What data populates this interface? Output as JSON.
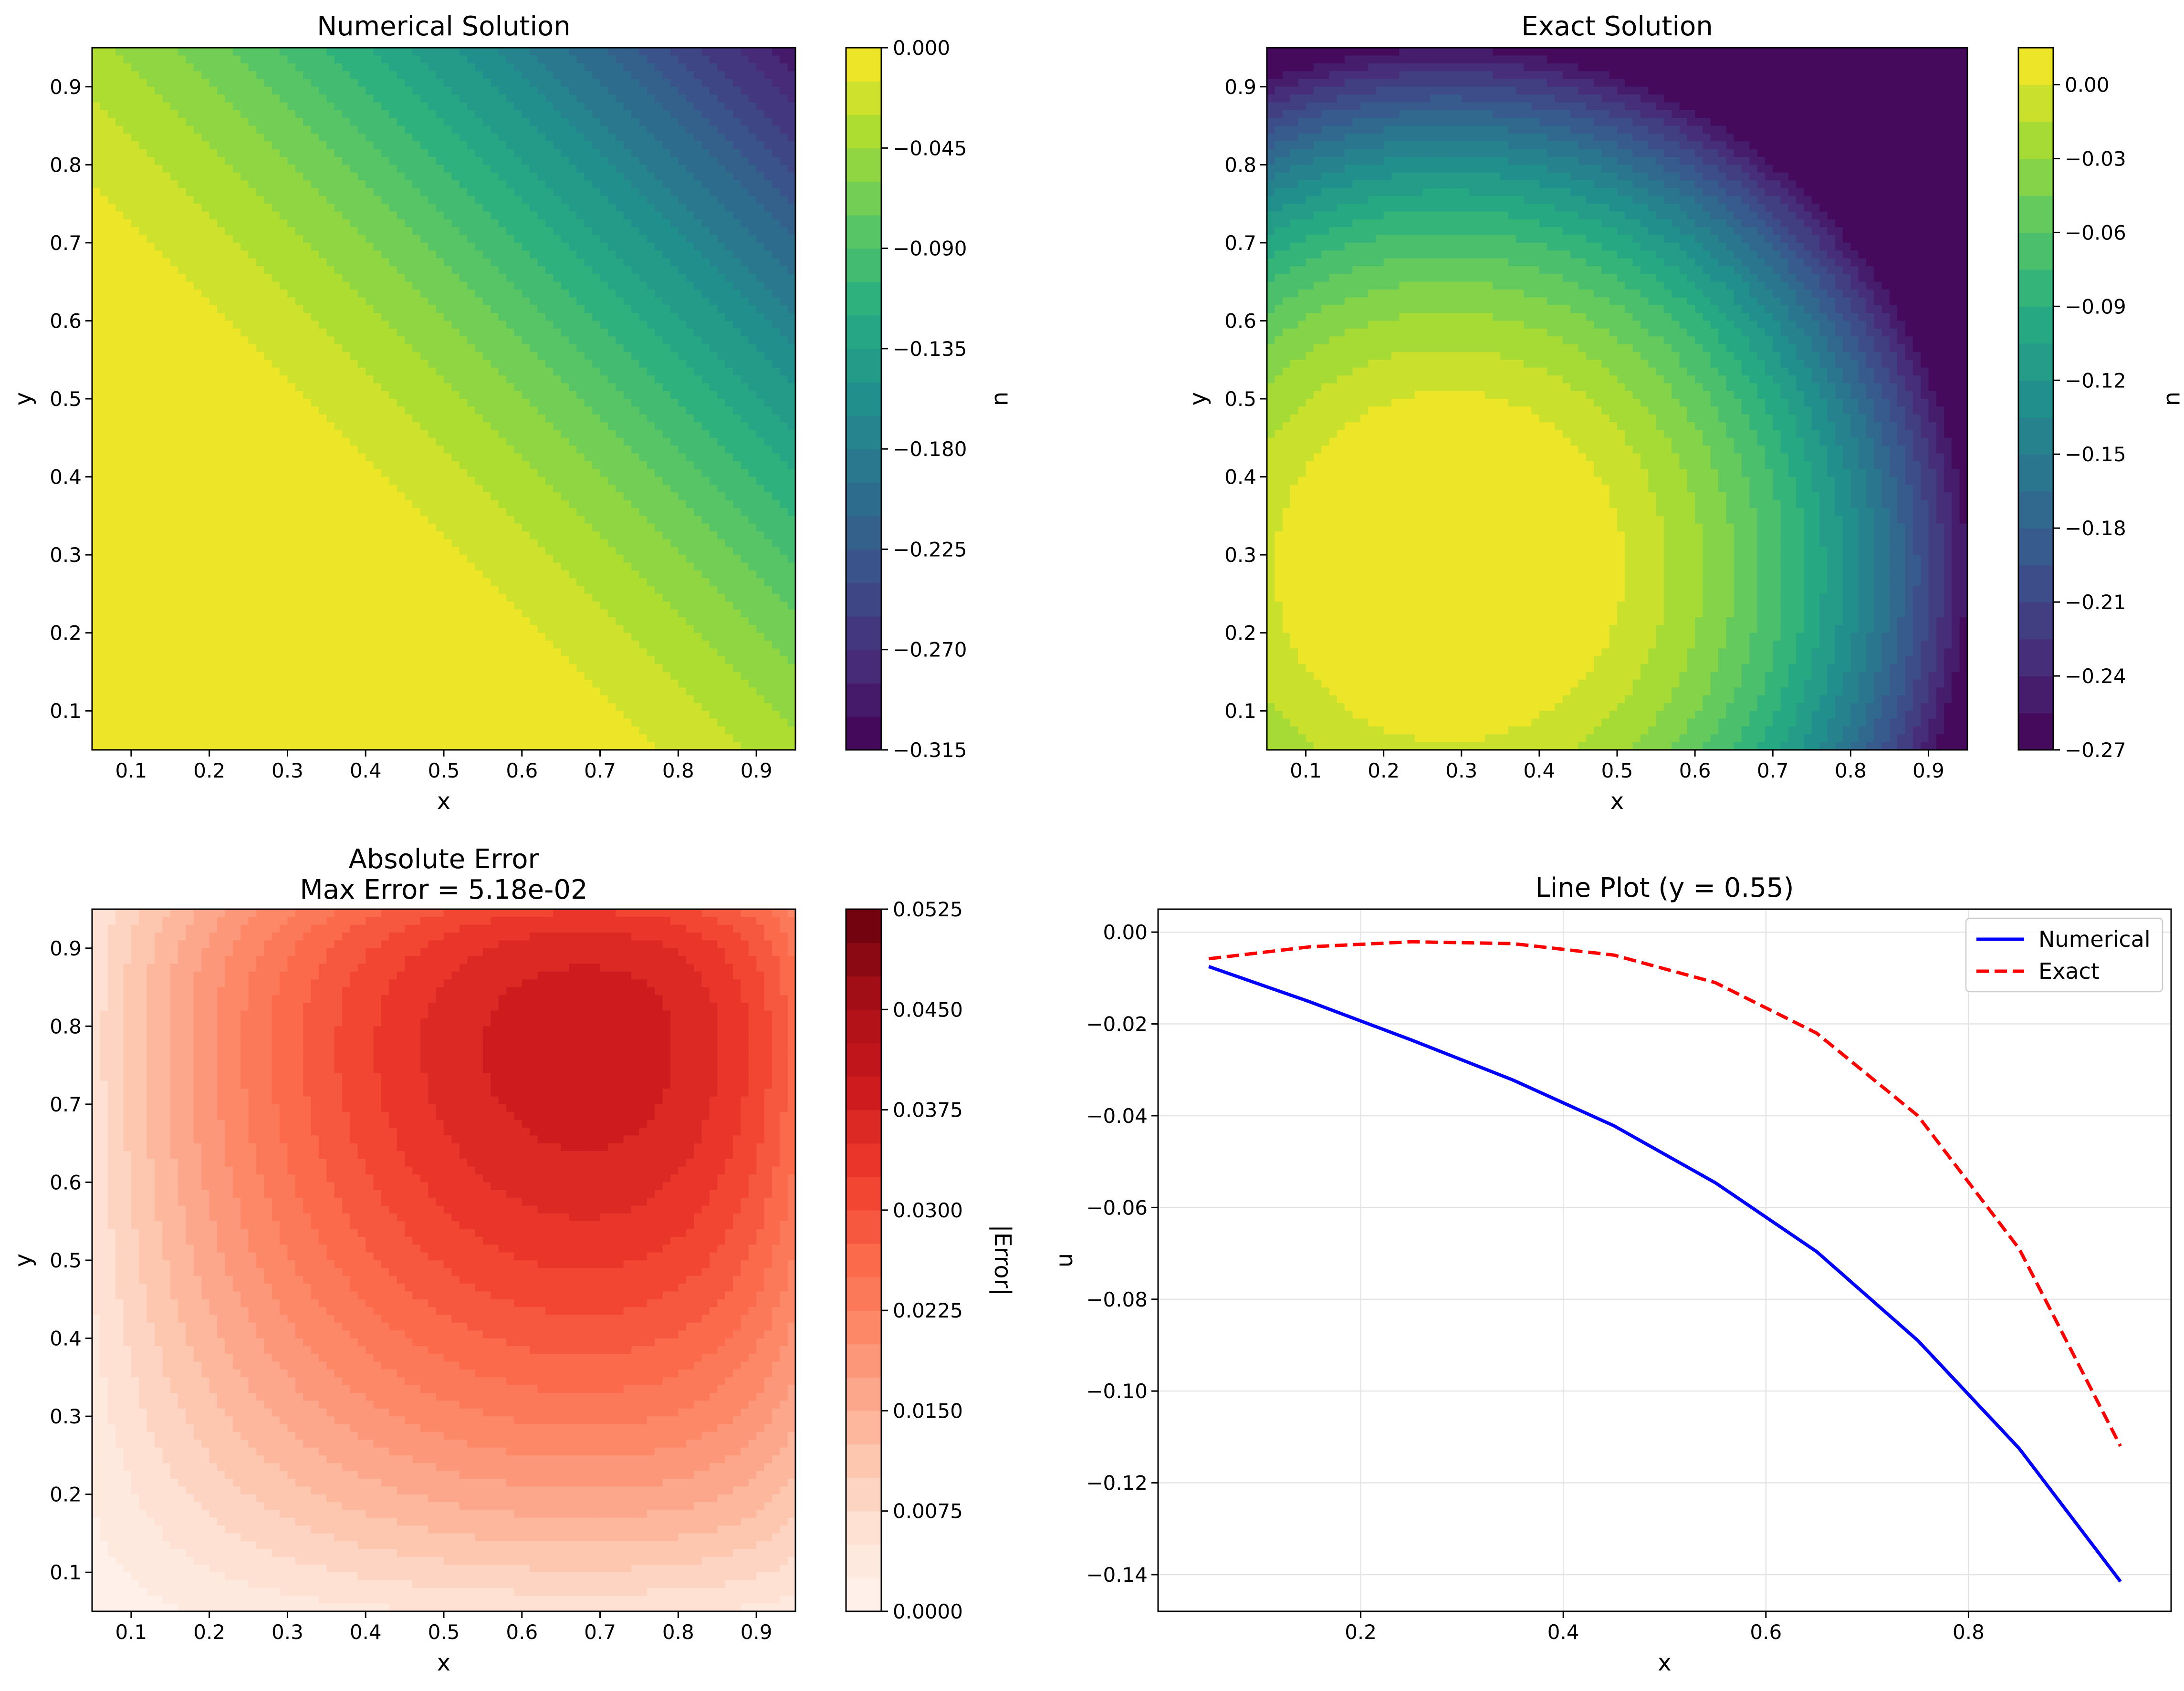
{
  "chart_data": [
    {
      "type": "heatmap",
      "title": "Numerical Solution",
      "xlabel": "x",
      "ylabel": "y",
      "xlim": [
        0.05,
        0.95
      ],
      "ylim": [
        0.05,
        0.95
      ],
      "xticks": [
        "0.1",
        "0.2",
        "0.3",
        "0.4",
        "0.5",
        "0.6",
        "0.7",
        "0.8",
        "0.9"
      ],
      "yticks": [
        "0.1",
        "0.2",
        "0.3",
        "0.4",
        "0.5",
        "0.6",
        "0.7",
        "0.8",
        "0.9"
      ],
      "colormap": "viridis",
      "colorbar": {
        "label": "u",
        "range": [
          -0.315,
          0.0
        ],
        "ticks": [
          "0.000",
          "−0.045",
          "−0.090",
          "−0.135",
          "−0.180",
          "−0.225",
          "−0.270",
          "−0.315"
        ]
      }
    },
    {
      "type": "heatmap",
      "title": "Exact Solution",
      "xlabel": "x",
      "ylabel": "y",
      "xlim": [
        0.05,
        0.95
      ],
      "ylim": [
        0.05,
        0.95
      ],
      "xticks": [
        "0.1",
        "0.2",
        "0.3",
        "0.4",
        "0.5",
        "0.6",
        "0.7",
        "0.8",
        "0.9"
      ],
      "yticks": [
        "0.1",
        "0.2",
        "0.3",
        "0.4",
        "0.5",
        "0.6",
        "0.7",
        "0.8",
        "0.9"
      ],
      "colormap": "viridis",
      "colorbar": {
        "label": "u",
        "range": [
          -0.27,
          0.015
        ],
        "ticks": [
          "0.00",
          "−0.03",
          "−0.06",
          "−0.09",
          "−0.12",
          "−0.15",
          "−0.18",
          "−0.21",
          "−0.24",
          "−0.27"
        ]
      }
    },
    {
      "type": "heatmap",
      "title": "Absolute Error",
      "subtitle": "Max Error = 5.18e-02",
      "xlabel": "x",
      "ylabel": "y",
      "xlim": [
        0.05,
        0.95
      ],
      "ylim": [
        0.05,
        0.95
      ],
      "xticks": [
        "0.1",
        "0.2",
        "0.3",
        "0.4",
        "0.5",
        "0.6",
        "0.7",
        "0.8",
        "0.9"
      ],
      "yticks": [
        "0.1",
        "0.2",
        "0.3",
        "0.4",
        "0.5",
        "0.6",
        "0.7",
        "0.8",
        "0.9"
      ],
      "colormap": "Reds",
      "colorbar": {
        "label": "|Error|",
        "range": [
          0.0,
          0.0525
        ],
        "ticks": [
          "0.0525",
          "0.0450",
          "0.0375",
          "0.0300",
          "0.0225",
          "0.0150",
          "0.0075",
          "0.0000"
        ]
      }
    },
    {
      "type": "line",
      "title": "Line Plot (y = 0.55)",
      "xlabel": "x",
      "ylabel": "u",
      "xlim": [
        0.0,
        1.0
      ],
      "ylim": [
        -0.148,
        0.005
      ],
      "xticks": [
        "0.2",
        "0.4",
        "0.6",
        "0.8"
      ],
      "yticks": [
        "0.00",
        "−0.02",
        "−0.04",
        "−0.06",
        "−0.08",
        "−0.10",
        "−0.12",
        "−0.14"
      ],
      "grid": true,
      "legend": "top-right",
      "x": [
        0.05,
        0.15,
        0.25,
        0.35,
        0.45,
        0.55,
        0.65,
        0.75,
        0.85,
        0.95
      ],
      "series": [
        {
          "name": "Numerical",
          "color": "#0000ff",
          "style": "solid",
          "values": [
            -0.0075,
            -0.0152,
            -0.0235,
            -0.0322,
            -0.0422,
            -0.0546,
            -0.0696,
            -0.089,
            -0.1125,
            -0.1415
          ]
        },
        {
          "name": "Exact",
          "color": "#ff0000",
          "style": "dashed",
          "values": [
            -0.0058,
            -0.0032,
            -0.0021,
            -0.0025,
            -0.005,
            -0.011,
            -0.022,
            -0.04,
            -0.069,
            -0.112
          ]
        }
      ]
    }
  ]
}
